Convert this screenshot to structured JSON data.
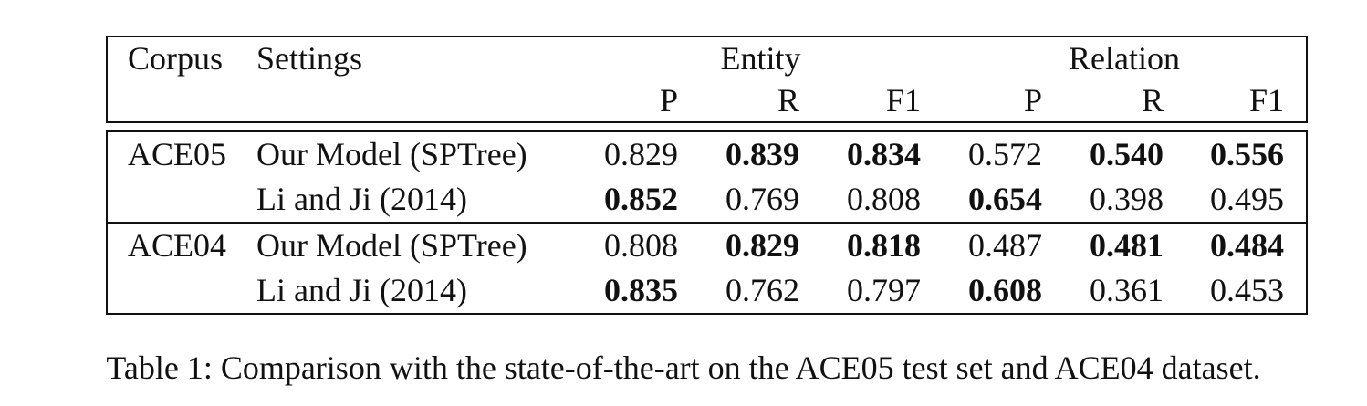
{
  "table": {
    "headers": {
      "corpus": "Corpus",
      "settings": "Settings",
      "group_entity": "Entity",
      "group_relation": "Relation",
      "metrics": [
        "P",
        "R",
        "F1",
        "P",
        "R",
        "F1"
      ]
    },
    "rows": [
      {
        "corpus": "ACE05",
        "setting": "Our Model (SPTree)",
        "values": [
          "0.829",
          "0.839",
          "0.834",
          "0.572",
          "0.540",
          "0.556"
        ],
        "bold": [
          false,
          true,
          true,
          false,
          true,
          true
        ]
      },
      {
        "corpus": "",
        "setting": "Li and Ji (2014)",
        "values": [
          "0.852",
          "0.769",
          "0.808",
          "0.654",
          "0.398",
          "0.495"
        ],
        "bold": [
          true,
          false,
          false,
          true,
          false,
          false
        ]
      },
      {
        "corpus": "ACE04",
        "setting": "Our Model (SPTree)",
        "values": [
          "0.808",
          "0.829",
          "0.818",
          "0.487",
          "0.481",
          "0.484"
        ],
        "bold": [
          false,
          true,
          true,
          false,
          true,
          true
        ]
      },
      {
        "corpus": "",
        "setting": "Li and Ji (2014)",
        "values": [
          "0.835",
          "0.762",
          "0.797",
          "0.608",
          "0.361",
          "0.453"
        ],
        "bold": [
          true,
          false,
          false,
          true,
          false,
          false
        ]
      }
    ]
  },
  "caption": "Table 1: Comparison with the state-of-the-art on the ACE05 test set and ACE04 dataset."
}
